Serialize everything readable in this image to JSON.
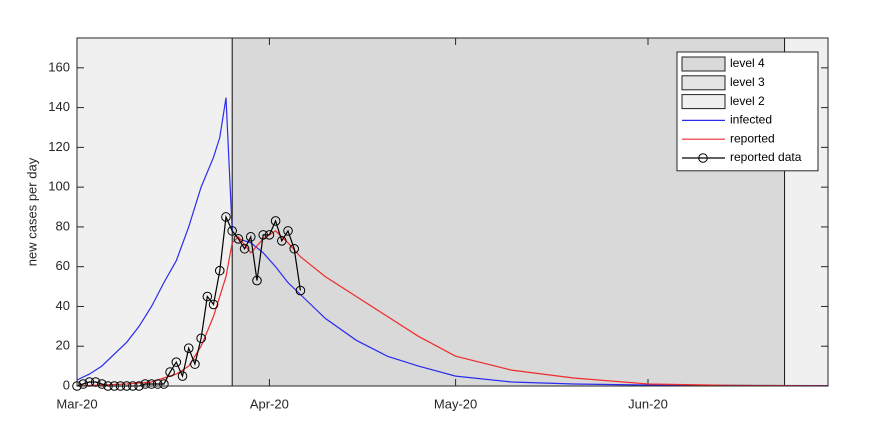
{
  "chart_data": {
    "type": "line",
    "y_label": "new cases per day",
    "xlim": [
      0,
      121
    ],
    "ylim": [
      0,
      175
    ],
    "xticks": [
      {
        "value": 0,
        "label": "Mar-20"
      },
      {
        "value": 31,
        "label": "Apr-20"
      },
      {
        "value": 61,
        "label": "May-20"
      },
      {
        "value": 92,
        "label": "Jun-20"
      }
    ],
    "yticks": [
      0,
      20,
      40,
      60,
      80,
      100,
      120,
      140,
      160
    ],
    "legend": "upper right",
    "shading": [
      {
        "name": "level 4",
        "color": "#d9d9d9",
        "spans": [
          [
            25,
            114
          ]
        ]
      },
      {
        "name": "level 3",
        "color": "#e4e4e4",
        "spans": []
      },
      {
        "name": "level 2",
        "color": "#f0f0f0",
        "spans": [
          [
            0,
            25
          ],
          [
            114,
            121
          ]
        ]
      }
    ],
    "series": [
      {
        "name": "infected",
        "color": "#2b2bf0",
        "x": [
          0,
          2,
          4,
          6,
          8,
          10,
          12,
          14,
          16,
          18,
          20,
          22,
          23,
          24,
          25,
          26,
          28,
          30,
          32,
          34,
          36,
          38,
          40,
          45,
          50,
          55,
          61,
          70,
          80,
          92,
          105,
          121
        ],
        "values": [
          3,
          6,
          10,
          16,
          22,
          30,
          40,
          52,
          63,
          80,
          100,
          115,
          125,
          145,
          78,
          74,
          72,
          67,
          60,
          52,
          46,
          40,
          34,
          23,
          15,
          10,
          5,
          2,
          1,
          0.5,
          0.3,
          0.2
        ]
      },
      {
        "name": "reported",
        "color": "#f02b2b",
        "x": [
          0,
          4,
          8,
          12,
          14,
          16,
          18,
          20,
          22,
          24,
          25,
          26,
          28,
          30,
          32,
          34,
          36,
          38,
          40,
          45,
          50,
          55,
          61,
          70,
          80,
          92,
          105,
          121
        ],
        "values": [
          0,
          0.5,
          1,
          2,
          4,
          6,
          10,
          20,
          35,
          55,
          72,
          75,
          67,
          74,
          78,
          72,
          65,
          60,
          55,
          45,
          35,
          25,
          15,
          8,
          4,
          1,
          0.3,
          0.1
        ]
      },
      {
        "name": "reported data",
        "color": "#000000",
        "marker": "o",
        "x": [
          0,
          1,
          2,
          3,
          4,
          5,
          6,
          7,
          8,
          9,
          10,
          11,
          12,
          13,
          14,
          15,
          16,
          17,
          18,
          19,
          20,
          21,
          22,
          23,
          24,
          25,
          26,
          27,
          28,
          29,
          30,
          31,
          32,
          33,
          34,
          35,
          36
        ],
        "values": [
          0,
          1,
          2,
          2,
          1,
          0,
          0,
          0,
          0,
          0,
          0,
          1,
          1,
          1,
          1,
          7,
          12,
          5,
          19,
          11,
          24,
          45,
          41,
          58,
          85,
          78,
          74,
          69,
          75,
          53,
          76,
          76,
          83,
          73,
          78,
          69,
          48
        ]
      }
    ]
  }
}
